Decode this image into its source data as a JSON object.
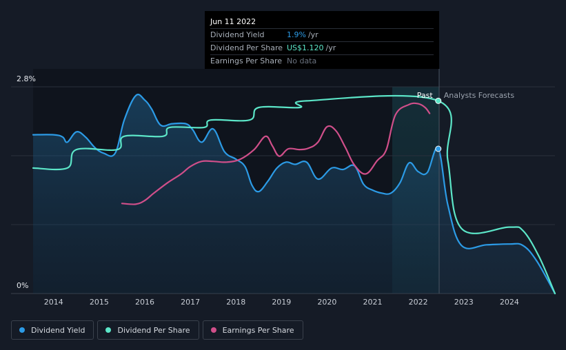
{
  "tooltip": {
    "date": "Jun 11 2022",
    "rows": [
      {
        "name": "Dividend Yield",
        "value": "1.9%",
        "unit": "/yr",
        "color": "#2c9be6"
      },
      {
        "name": "Dividend Per Share",
        "value": "US$1.120",
        "unit": "/yr",
        "color": "#5ce6c8"
      },
      {
        "name": "Earnings Per Share",
        "value": "No data",
        "unit": "",
        "color": "#6b7380"
      }
    ]
  },
  "legend": [
    {
      "label": "Dividend Yield",
      "color": "#2c9be6"
    },
    {
      "label": "Dividend Per Share",
      "color": "#5ce6c8"
    },
    {
      "label": "Earnings Per Share",
      "color": "#d04f8a"
    }
  ],
  "chart_data": {
    "type": "line",
    "x_unit": "year",
    "xlim": [
      2013.55,
      2025.0
    ],
    "ylim": [
      0,
      2.8
    ],
    "y_tick_labels": [
      {
        "value": 2.8,
        "label": "2.8%"
      },
      {
        "value": 0,
        "label": "0%"
      }
    ],
    "x_ticks": [
      "2014",
      "2015",
      "2016",
      "2017",
      "2018",
      "2019",
      "2020",
      "2021",
      "2022",
      "2023",
      "2024"
    ],
    "now": 2022.44,
    "past_label": "Past",
    "forecast_label": "Analysts Forecasts",
    "series": [
      {
        "name": "Dividend Yield",
        "color": "#2c9be6",
        "points": [
          [
            2013.55,
            2.15
          ],
          [
            2014.0,
            2.15
          ],
          [
            2014.2,
            2.12
          ],
          [
            2014.3,
            2.05
          ],
          [
            2014.5,
            2.19
          ],
          [
            2014.7,
            2.12
          ],
          [
            2014.9,
            1.98
          ],
          [
            2015.1,
            1.9
          ],
          [
            2015.35,
            1.9
          ],
          [
            2015.55,
            2.35
          ],
          [
            2015.8,
            2.68
          ],
          [
            2016.0,
            2.62
          ],
          [
            2016.15,
            2.5
          ],
          [
            2016.35,
            2.28
          ],
          [
            2016.6,
            2.3
          ],
          [
            2016.9,
            2.3
          ],
          [
            2017.05,
            2.22
          ],
          [
            2017.25,
            2.05
          ],
          [
            2017.5,
            2.23
          ],
          [
            2017.75,
            1.92
          ],
          [
            2018.0,
            1.82
          ],
          [
            2018.2,
            1.72
          ],
          [
            2018.35,
            1.47
          ],
          [
            2018.5,
            1.38
          ],
          [
            2018.7,
            1.52
          ],
          [
            2018.9,
            1.7
          ],
          [
            2019.1,
            1.78
          ],
          [
            2019.3,
            1.75
          ],
          [
            2019.55,
            1.78
          ],
          [
            2019.8,
            1.55
          ],
          [
            2020.1,
            1.7
          ],
          [
            2020.35,
            1.68
          ],
          [
            2020.6,
            1.73
          ],
          [
            2020.8,
            1.48
          ],
          [
            2021.0,
            1.4
          ],
          [
            2021.2,
            1.36
          ],
          [
            2021.4,
            1.36
          ],
          [
            2021.6,
            1.5
          ],
          [
            2021.8,
            1.77
          ],
          [
            2022.0,
            1.65
          ],
          [
            2022.2,
            1.64
          ],
          [
            2022.44,
            1.96
          ],
          [
            2022.65,
            1.2
          ],
          [
            2022.95,
            0.65
          ],
          [
            2023.5,
            0.66
          ],
          [
            2024.0,
            0.67
          ],
          [
            2024.3,
            0.65
          ],
          [
            2024.6,
            0.44
          ],
          [
            2025.0,
            0.0
          ]
        ]
      },
      {
        "name": "Dividend Per Share",
        "color": "#5ce6c8",
        "points": [
          [
            2013.55,
            1.7
          ],
          [
            2014.3,
            1.7
          ],
          [
            2014.5,
            1.95
          ],
          [
            2015.4,
            1.95
          ],
          [
            2015.55,
            2.13
          ],
          [
            2016.4,
            2.13
          ],
          [
            2016.55,
            2.25
          ],
          [
            2017.3,
            2.25
          ],
          [
            2017.45,
            2.35
          ],
          [
            2018.3,
            2.35
          ],
          [
            2018.5,
            2.52
          ],
          [
            2019.4,
            2.52
          ],
          [
            2019.55,
            2.61
          ],
          [
            2022.44,
            2.61
          ],
          [
            2022.65,
            1.8
          ],
          [
            2022.95,
            0.88
          ],
          [
            2024.0,
            0.9
          ],
          [
            2024.3,
            0.85
          ],
          [
            2024.65,
            0.5
          ],
          [
            2025.0,
            0.0
          ]
        ]
      },
      {
        "name": "Earnings Per Share",
        "color": "#d04f8a",
        "points": [
          [
            2015.5,
            1.22
          ],
          [
            2015.8,
            1.21
          ],
          [
            2016.0,
            1.26
          ],
          [
            2016.2,
            1.36
          ],
          [
            2016.5,
            1.5
          ],
          [
            2016.8,
            1.62
          ],
          [
            2017.0,
            1.72
          ],
          [
            2017.25,
            1.79
          ],
          [
            2017.5,
            1.79
          ],
          [
            2017.8,
            1.78
          ],
          [
            2018.1,
            1.82
          ],
          [
            2018.4,
            1.95
          ],
          [
            2018.65,
            2.13
          ],
          [
            2018.8,
            2.0
          ],
          [
            2018.95,
            1.86
          ],
          [
            2019.15,
            1.96
          ],
          [
            2019.4,
            1.95
          ],
          [
            2019.6,
            1.97
          ],
          [
            2019.8,
            2.05
          ],
          [
            2020.0,
            2.26
          ],
          [
            2020.2,
            2.2
          ],
          [
            2020.4,
            1.98
          ],
          [
            2020.6,
            1.74
          ],
          [
            2020.85,
            1.62
          ],
          [
            2021.1,
            1.8
          ],
          [
            2021.3,
            1.95
          ],
          [
            2021.5,
            2.42
          ],
          [
            2021.8,
            2.56
          ],
          [
            2022.0,
            2.57
          ],
          [
            2022.15,
            2.52
          ],
          [
            2022.25,
            2.44
          ]
        ]
      }
    ]
  }
}
